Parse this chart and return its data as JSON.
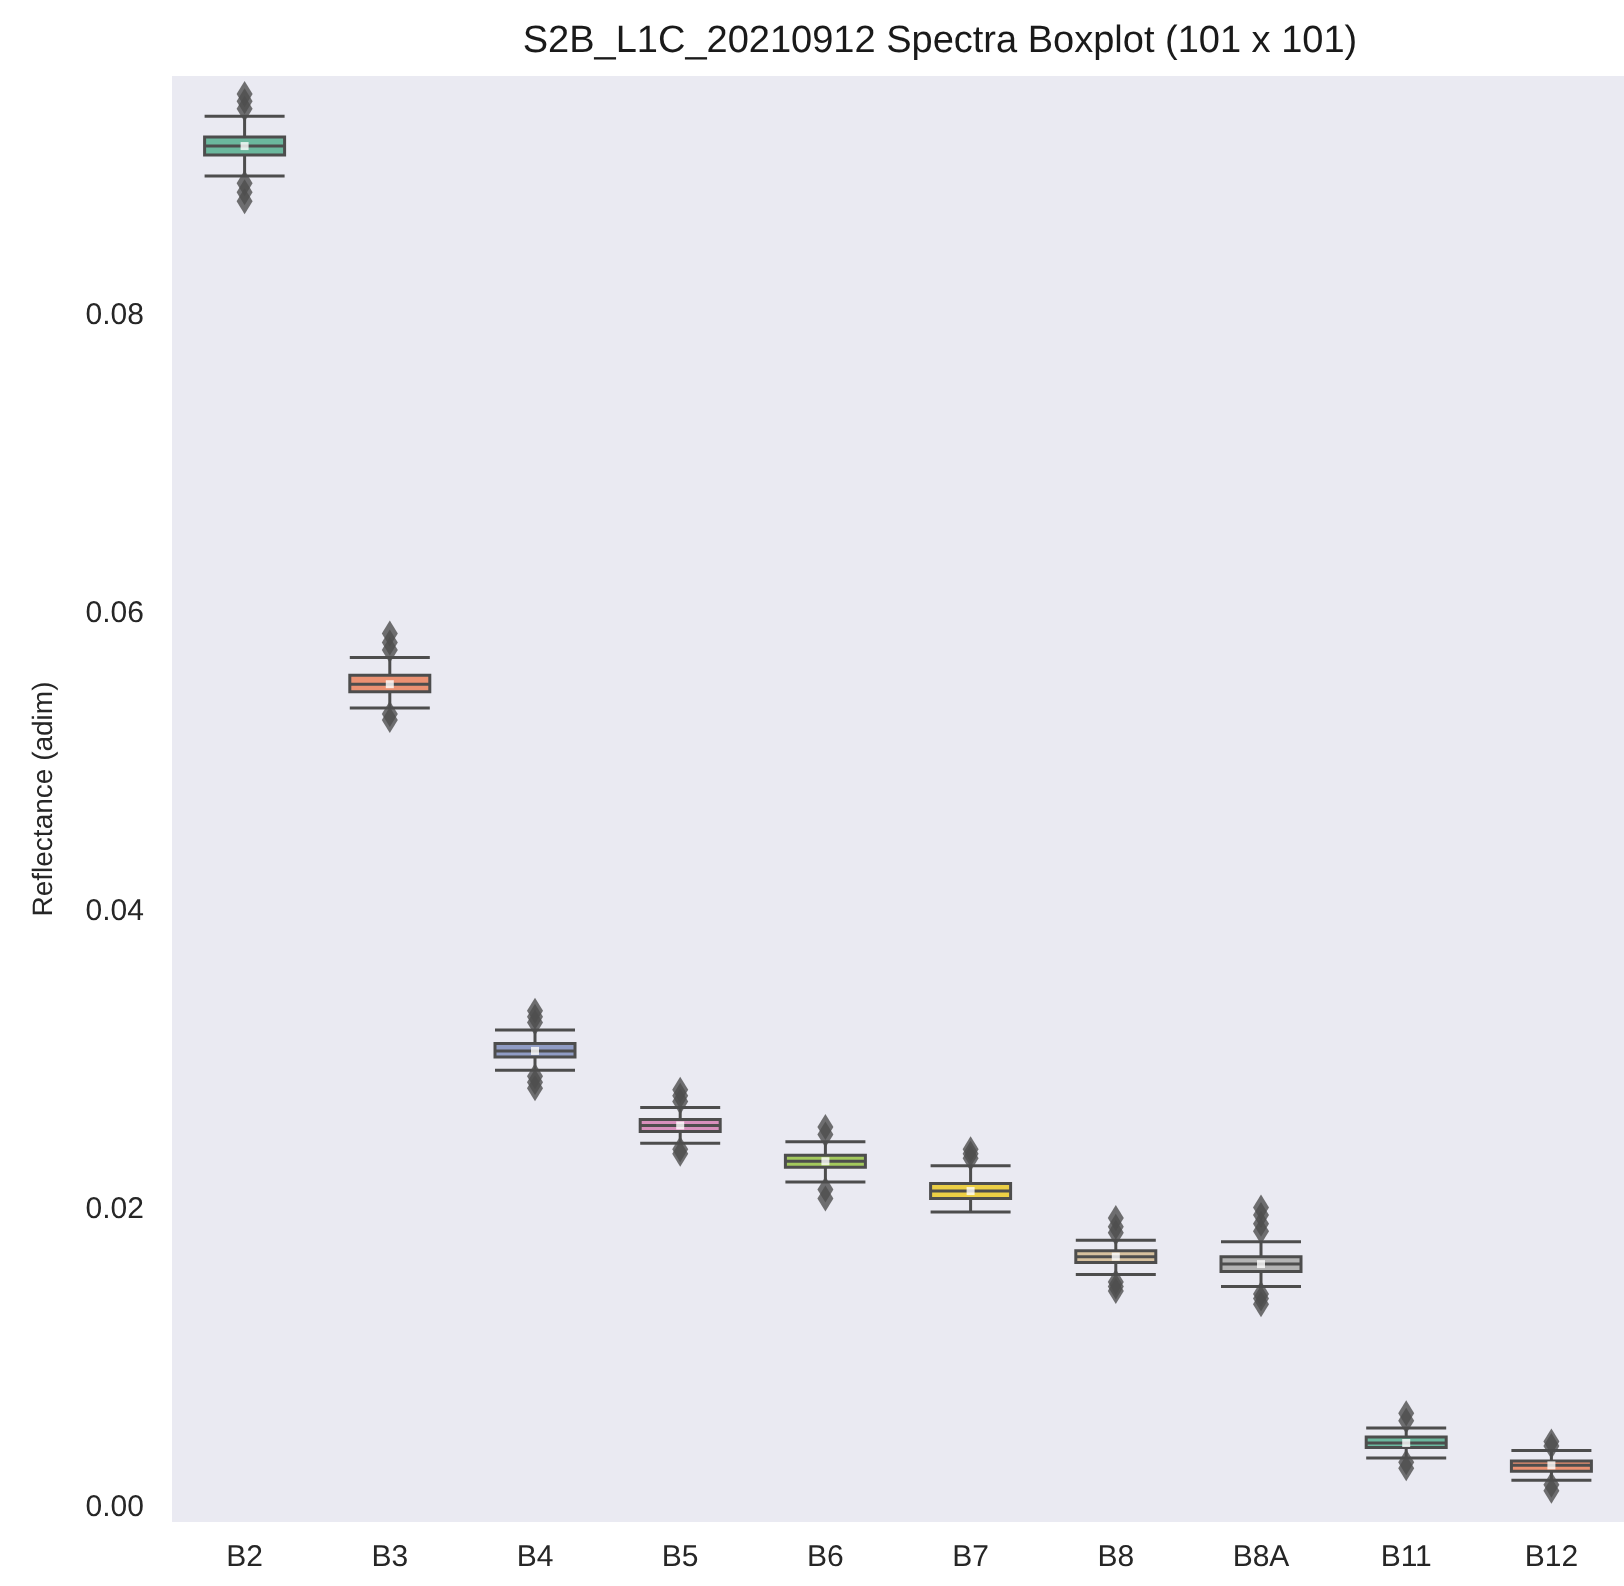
{
  "chart_data": {
    "type": "box",
    "title": "S2B_L1C_20210912 Spectra Boxplot (101 x 101)",
    "ylabel": "Reflectance (adim)",
    "categories": [
      "B2",
      "B3",
      "B4",
      "B5",
      "B6",
      "B7",
      "B8",
      "B8A",
      "B11",
      "B12"
    ],
    "colors": [
      "#6bb89e",
      "#eb9172",
      "#909cc4",
      "#d68fbc",
      "#a3c95d",
      "#eccf45",
      "#d6c09e",
      "#b3b3b3",
      "#6bb89e",
      "#eb9172"
    ],
    "boxes": [
      {
        "low": 0.0893,
        "q1": 0.0907,
        "median": 0.0913,
        "q3": 0.0919,
        "high": 0.0933,
        "mean": 0.0913,
        "outliers": [
          0.0938,
          0.0943,
          0.0948,
          0.0888,
          0.0882,
          0.0876
        ]
      },
      {
        "low": 0.0536,
        "q1": 0.0547,
        "median": 0.0552,
        "q3": 0.0558,
        "high": 0.057,
        "mean": 0.0552,
        "outliers": [
          0.0575,
          0.058,
          0.0586,
          0.0532,
          0.0528
        ]
      },
      {
        "low": 0.0293,
        "q1": 0.0302,
        "median": 0.0306,
        "q3": 0.0311,
        "high": 0.032,
        "mean": 0.0306,
        "outliers": [
          0.0325,
          0.0329,
          0.0333,
          0.0289,
          0.0285,
          0.0281
        ]
      },
      {
        "low": 0.0244,
        "q1": 0.0252,
        "median": 0.0256,
        "q3": 0.026,
        "high": 0.0268,
        "mean": 0.0256,
        "outliers": [
          0.0272,
          0.0276,
          0.028,
          0.024,
          0.0237
        ]
      },
      {
        "low": 0.0218,
        "q1": 0.0228,
        "median": 0.0232,
        "q3": 0.0236,
        "high": 0.0245,
        "mean": 0.0232,
        "outliers": [
          0.025,
          0.0255,
          0.0213,
          0.0207
        ]
      },
      {
        "low": 0.0198,
        "q1": 0.0207,
        "median": 0.0212,
        "q3": 0.0217,
        "high": 0.0229,
        "mean": 0.0212,
        "outliers": [
          0.0234,
          0.0237,
          0.024
        ]
      },
      {
        "low": 0.0156,
        "q1": 0.0164,
        "median": 0.0168,
        "q3": 0.0172,
        "high": 0.0179,
        "mean": 0.0168,
        "outliers": [
          0.0184,
          0.0188,
          0.0194,
          0.0151,
          0.0148,
          0.0145
        ]
      },
      {
        "low": 0.0148,
        "q1": 0.0158,
        "median": 0.0163,
        "q3": 0.0168,
        "high": 0.0178,
        "mean": 0.0163,
        "outliers": [
          0.0185,
          0.019,
          0.0196,
          0.0201,
          0.0143,
          0.014,
          0.0136
        ]
      },
      {
        "low": 0.0033,
        "q1": 0.004,
        "median": 0.0043,
        "q3": 0.0047,
        "high": 0.0053,
        "mean": 0.0043,
        "outliers": [
          0.0058,
          0.0063,
          0.003,
          0.0026
        ]
      },
      {
        "low": 0.0018,
        "q1": 0.0024,
        "median": 0.0028,
        "q3": 0.0031,
        "high": 0.0038,
        "mean": 0.0028,
        "outliers": [
          0.0041,
          0.0044,
          0.0015,
          0.0011
        ]
      }
    ],
    "ylim": [
      -0.001,
      0.096
    ],
    "yticks": [
      {
        "value": 0,
        "label": "0.00"
      },
      {
        "value": 0.02,
        "label": "0.02"
      },
      {
        "value": 0.04,
        "label": "0.04"
      },
      {
        "value": 0.06,
        "label": "0.06"
      },
      {
        "value": 0.08,
        "label": "0.08"
      }
    ],
    "grid": false,
    "marker": "diamond"
  }
}
